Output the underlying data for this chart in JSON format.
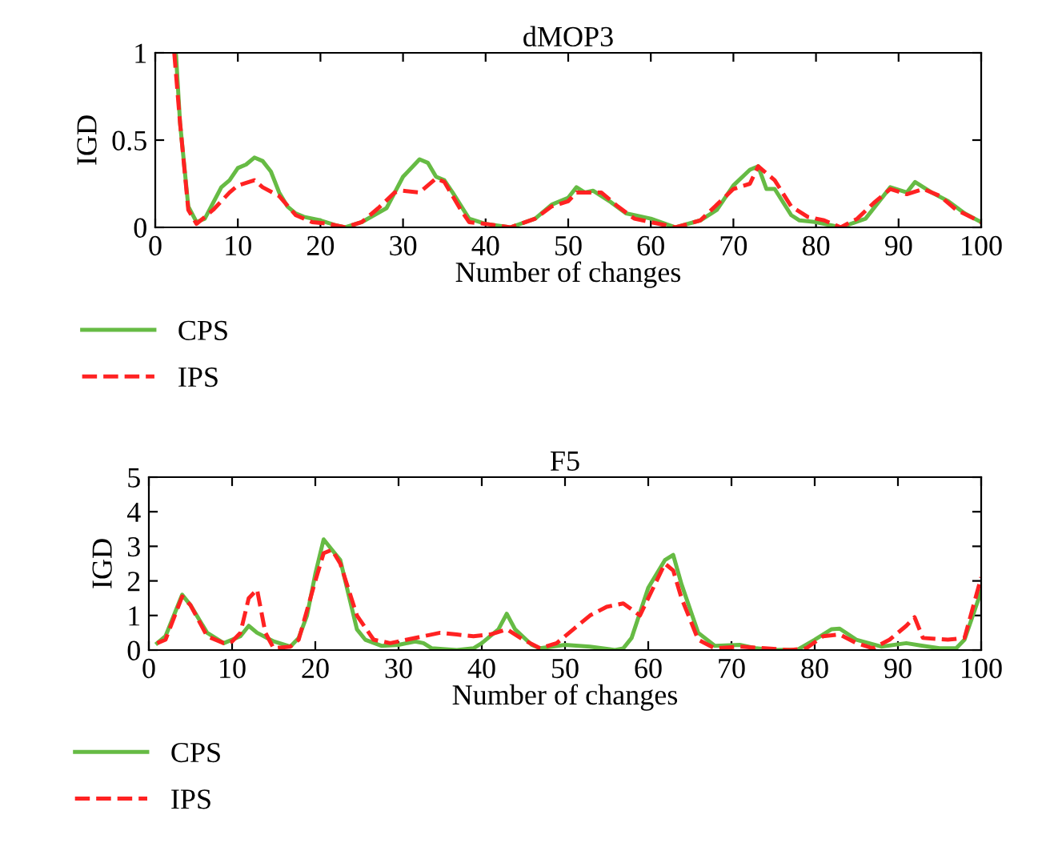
{
  "chart_data": [
    {
      "type": "line",
      "title": "dMOP3",
      "xlabel": "Number of changes",
      "ylabel": "IGD",
      "xlim": [
        0,
        100
      ],
      "xticks": [
        0,
        10,
        20,
        30,
        40,
        50,
        60,
        70,
        80,
        90,
        100
      ],
      "ylim": [
        0,
        1
      ],
      "yticks": [
        0,
        0.5,
        1
      ],
      "legend": "bottom",
      "grid": false,
      "series": [
        {
          "name": "CPS",
          "color": "#66bb44",
          "line_style": "solid",
          "x": [
            2.5,
            3,
            4,
            5,
            6,
            8,
            9,
            10,
            11,
            12,
            13,
            14,
            15,
            16,
            17,
            18,
            20,
            22,
            23,
            25,
            28,
            30,
            32,
            33,
            34,
            35,
            36,
            38,
            40,
            43,
            46,
            48,
            50,
            51,
            52,
            53,
            55,
            57,
            59,
            60,
            63,
            66,
            68,
            70,
            72,
            73,
            74,
            75,
            77,
            78,
            80,
            83,
            86,
            89,
            91,
            92,
            94,
            96,
            98,
            100
          ],
          "values": [
            1.0,
            0.6,
            0.12,
            0.03,
            0.05,
            0.23,
            0.27,
            0.34,
            0.36,
            0.4,
            0.38,
            0.32,
            0.2,
            0.12,
            0.08,
            0.06,
            0.04,
            0.01,
            0.0,
            0.03,
            0.11,
            0.29,
            0.39,
            0.37,
            0.29,
            0.27,
            0.2,
            0.05,
            0.02,
            0.0,
            0.05,
            0.13,
            0.17,
            0.23,
            0.2,
            0.21,
            0.15,
            0.08,
            0.06,
            0.05,
            0.0,
            0.04,
            0.1,
            0.24,
            0.33,
            0.35,
            0.22,
            0.22,
            0.07,
            0.04,
            0.03,
            0.0,
            0.05,
            0.23,
            0.2,
            0.26,
            0.2,
            0.15,
            0.08,
            0.03
          ]
        },
        {
          "name": "IPS",
          "color": "#ff2222",
          "line_style": "dashed",
          "x": [
            2.3,
            3,
            4,
            5,
            7,
            9,
            10,
            12,
            13,
            15,
            17,
            19,
            21,
            23,
            25,
            27,
            29,
            30,
            32,
            34,
            35,
            37,
            38,
            40,
            43,
            46,
            48,
            50,
            51,
            53,
            54,
            56,
            58,
            60,
            63,
            66,
            68,
            70,
            72,
            73,
            75,
            77,
            79,
            81,
            83,
            85,
            87,
            89,
            91,
            93,
            95,
            97,
            100
          ],
          "values": [
            1.0,
            0.6,
            0.1,
            0.02,
            0.1,
            0.2,
            0.24,
            0.27,
            0.23,
            0.18,
            0.07,
            0.03,
            0.02,
            0.0,
            0.03,
            0.11,
            0.2,
            0.21,
            0.2,
            0.28,
            0.26,
            0.1,
            0.03,
            0.02,
            0.0,
            0.05,
            0.12,
            0.15,
            0.2,
            0.2,
            0.2,
            0.12,
            0.05,
            0.03,
            0.0,
            0.04,
            0.13,
            0.22,
            0.25,
            0.35,
            0.27,
            0.12,
            0.06,
            0.04,
            0.0,
            0.05,
            0.14,
            0.22,
            0.19,
            0.22,
            0.18,
            0.1,
            0.03
          ]
        }
      ]
    },
    {
      "type": "line",
      "title": "F5",
      "xlabel": "Number of changes",
      "ylabel": "IGD",
      "xlim": [
        0,
        100
      ],
      "xticks": [
        0,
        10,
        20,
        30,
        40,
        50,
        60,
        70,
        80,
        90,
        100
      ],
      "ylim": [
        0,
        5
      ],
      "yticks": [
        0,
        1,
        2,
        3,
        4,
        5
      ],
      "legend": "bottom",
      "grid": false,
      "series": [
        {
          "name": "CPS",
          "color": "#66bb44",
          "line_style": "solid",
          "x": [
            1,
            2,
            4,
            5,
            7,
            9,
            11,
            12,
            13,
            15,
            17,
            18,
            19,
            20,
            21,
            22,
            23,
            24,
            25,
            26,
            28,
            30,
            32,
            33,
            34,
            37,
            39,
            40,
            42,
            43,
            44,
            46,
            47,
            50,
            53,
            56,
            57,
            58,
            60,
            62,
            63,
            64,
            66,
            68,
            71,
            73,
            75,
            78,
            80,
            82,
            83,
            85,
            88,
            91,
            93,
            95,
            97,
            98,
            100
          ],
          "values": [
            0.2,
            0.4,
            1.6,
            1.3,
            0.5,
            0.2,
            0.4,
            0.7,
            0.5,
            0.25,
            0.1,
            0.35,
            1.0,
            2.2,
            3.2,
            2.9,
            2.6,
            1.6,
            0.6,
            0.3,
            0.12,
            0.15,
            0.25,
            0.2,
            0.05,
            0.0,
            0.05,
            0.2,
            0.6,
            1.05,
            0.6,
            0.15,
            0.05,
            0.15,
            0.1,
            0.0,
            0.05,
            0.35,
            1.8,
            2.6,
            2.75,
            1.9,
            0.5,
            0.12,
            0.15,
            0.05,
            0.0,
            0.02,
            0.3,
            0.6,
            0.62,
            0.3,
            0.1,
            0.2,
            0.12,
            0.05,
            0.05,
            0.3,
            1.7
          ]
        },
        {
          "name": "IPS",
          "color": "#ff2222",
          "line_style": "dashed",
          "x": [
            1,
            2,
            4,
            5,
            7,
            9,
            10,
            11,
            12,
            13,
            14,
            15,
            17,
            18,
            20,
            21,
            22,
            23,
            25,
            27,
            29,
            31,
            33,
            35,
            37,
            39,
            41,
            43,
            45,
            47,
            49,
            51,
            53,
            55,
            57,
            59,
            61,
            62,
            63,
            64,
            66,
            68,
            71,
            74,
            77,
            79,
            81,
            83,
            85,
            87,
            89,
            91,
            92,
            93,
            96,
            98,
            100
          ],
          "values": [
            0.2,
            0.3,
            1.55,
            1.3,
            0.4,
            0.2,
            0.25,
            0.5,
            1.5,
            1.75,
            0.5,
            0.05,
            0.1,
            0.3,
            2.0,
            2.8,
            2.9,
            2.5,
            1.0,
            0.3,
            0.2,
            0.3,
            0.4,
            0.5,
            0.45,
            0.4,
            0.45,
            0.6,
            0.3,
            0.05,
            0.2,
            0.6,
            1.0,
            1.25,
            1.35,
            1.0,
            2.0,
            2.5,
            2.3,
            1.5,
            0.3,
            0.05,
            0.1,
            0.05,
            0.0,
            0.05,
            0.4,
            0.45,
            0.2,
            0.05,
            0.3,
            0.7,
            0.95,
            0.35,
            0.3,
            0.35,
            2.1
          ]
        }
      ]
    }
  ]
}
